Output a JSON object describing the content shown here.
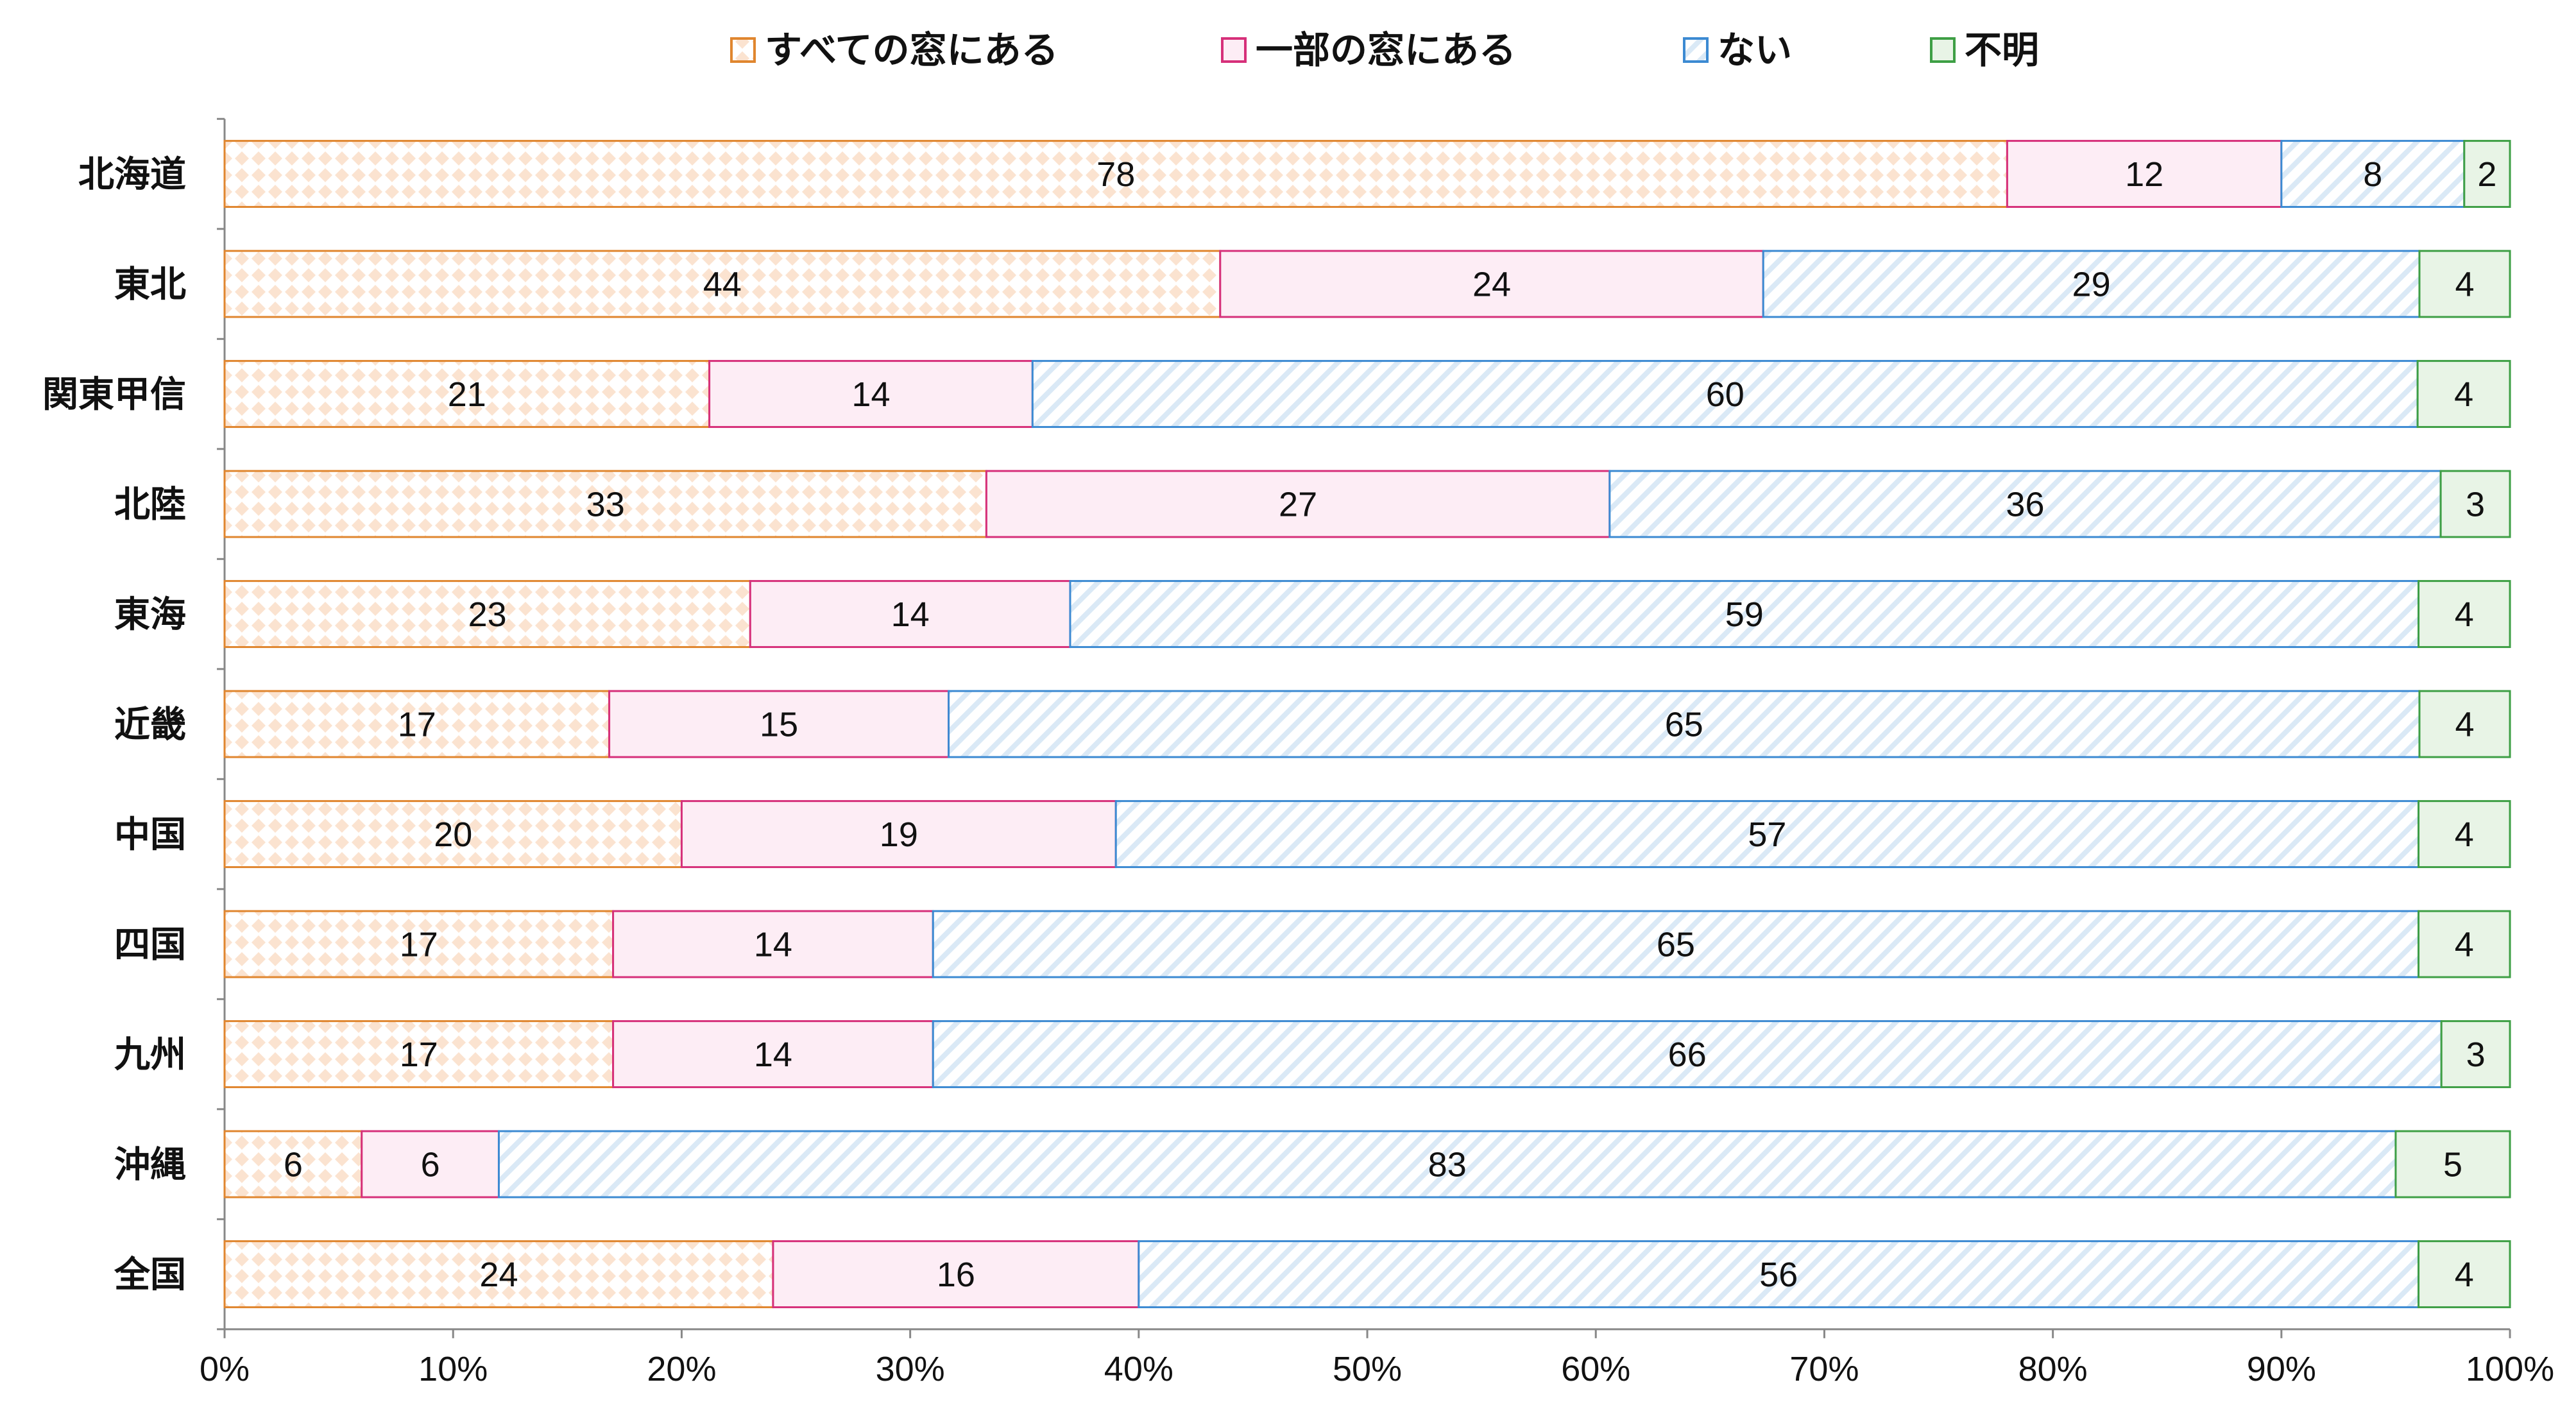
{
  "chart_data": {
    "type": "bar",
    "orientation": "horizontal",
    "stacked": true,
    "percent": true,
    "categories": [
      "北海道",
      "東北",
      "関東甲信",
      "北陸",
      "東海",
      "近畿",
      "中国",
      "四国",
      "九州",
      "沖縄",
      "全国"
    ],
    "series": [
      {
        "name": "すべての窓にある",
        "color": "#E0862F",
        "values": [
          78,
          44,
          21,
          33,
          23,
          17,
          20,
          17,
          17,
          6,
          24
        ]
      },
      {
        "name": "一部の窓にある",
        "color": "#D6307A",
        "values": [
          12,
          24,
          14,
          27,
          14,
          15,
          19,
          14,
          14,
          6,
          16
        ]
      },
      {
        "name": "ない",
        "color": "#3C8AD2",
        "values": [
          8,
          29,
          60,
          36,
          59,
          65,
          57,
          65,
          66,
          83,
          56
        ]
      },
      {
        "name": "不明",
        "color": "#3E9F45",
        "values": [
          2,
          4,
          4,
          3,
          4,
          4,
          4,
          4,
          3,
          5,
          4
        ]
      }
    ],
    "xlim": [
      0,
      100
    ],
    "xticks": [
      "0%",
      "10%",
      "20%",
      "30%",
      "40%",
      "50%",
      "60%",
      "70%",
      "80%",
      "90%",
      "100%"
    ],
    "legend_position": "top",
    "title": "",
    "xlabel": "",
    "ylabel": ""
  }
}
